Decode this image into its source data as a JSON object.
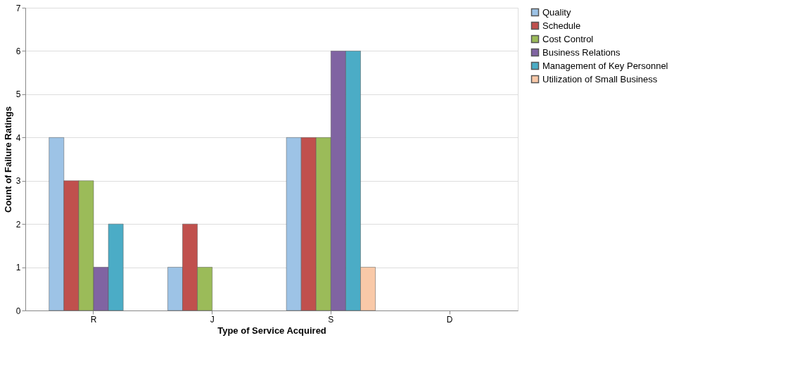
{
  "chart_data": {
    "type": "bar",
    "xlabel": "Type of Service Acquired",
    "ylabel": "Count of Failure Ratings",
    "categories": [
      "R",
      "J",
      "S",
      "D"
    ],
    "series": [
      {
        "name": "Quality",
        "color": "#9dc3e6",
        "values": [
          4,
          1,
          4,
          null
        ]
      },
      {
        "name": "Schedule",
        "color": "#c0504d",
        "values": [
          3,
          2,
          4,
          null
        ]
      },
      {
        "name": "Cost Control",
        "color": "#9bbb59",
        "values": [
          3,
          1,
          4,
          null
        ]
      },
      {
        "name": "Business Relations",
        "color": "#8064a2",
        "values": [
          1,
          null,
          6,
          null
        ]
      },
      {
        "name": "Management of Key Personnel",
        "color": "#4bacc6",
        "values": [
          2,
          null,
          6,
          null
        ]
      },
      {
        "name": "Utilization of Small Business",
        "color": "#f9c9a8",
        "values": [
          null,
          null,
          1,
          null
        ]
      }
    ],
    "ylim": [
      0,
      7
    ],
    "yticks": [
      0,
      1,
      2,
      3,
      4,
      5,
      6,
      7
    ],
    "grid": "y",
    "legend": "right"
  }
}
